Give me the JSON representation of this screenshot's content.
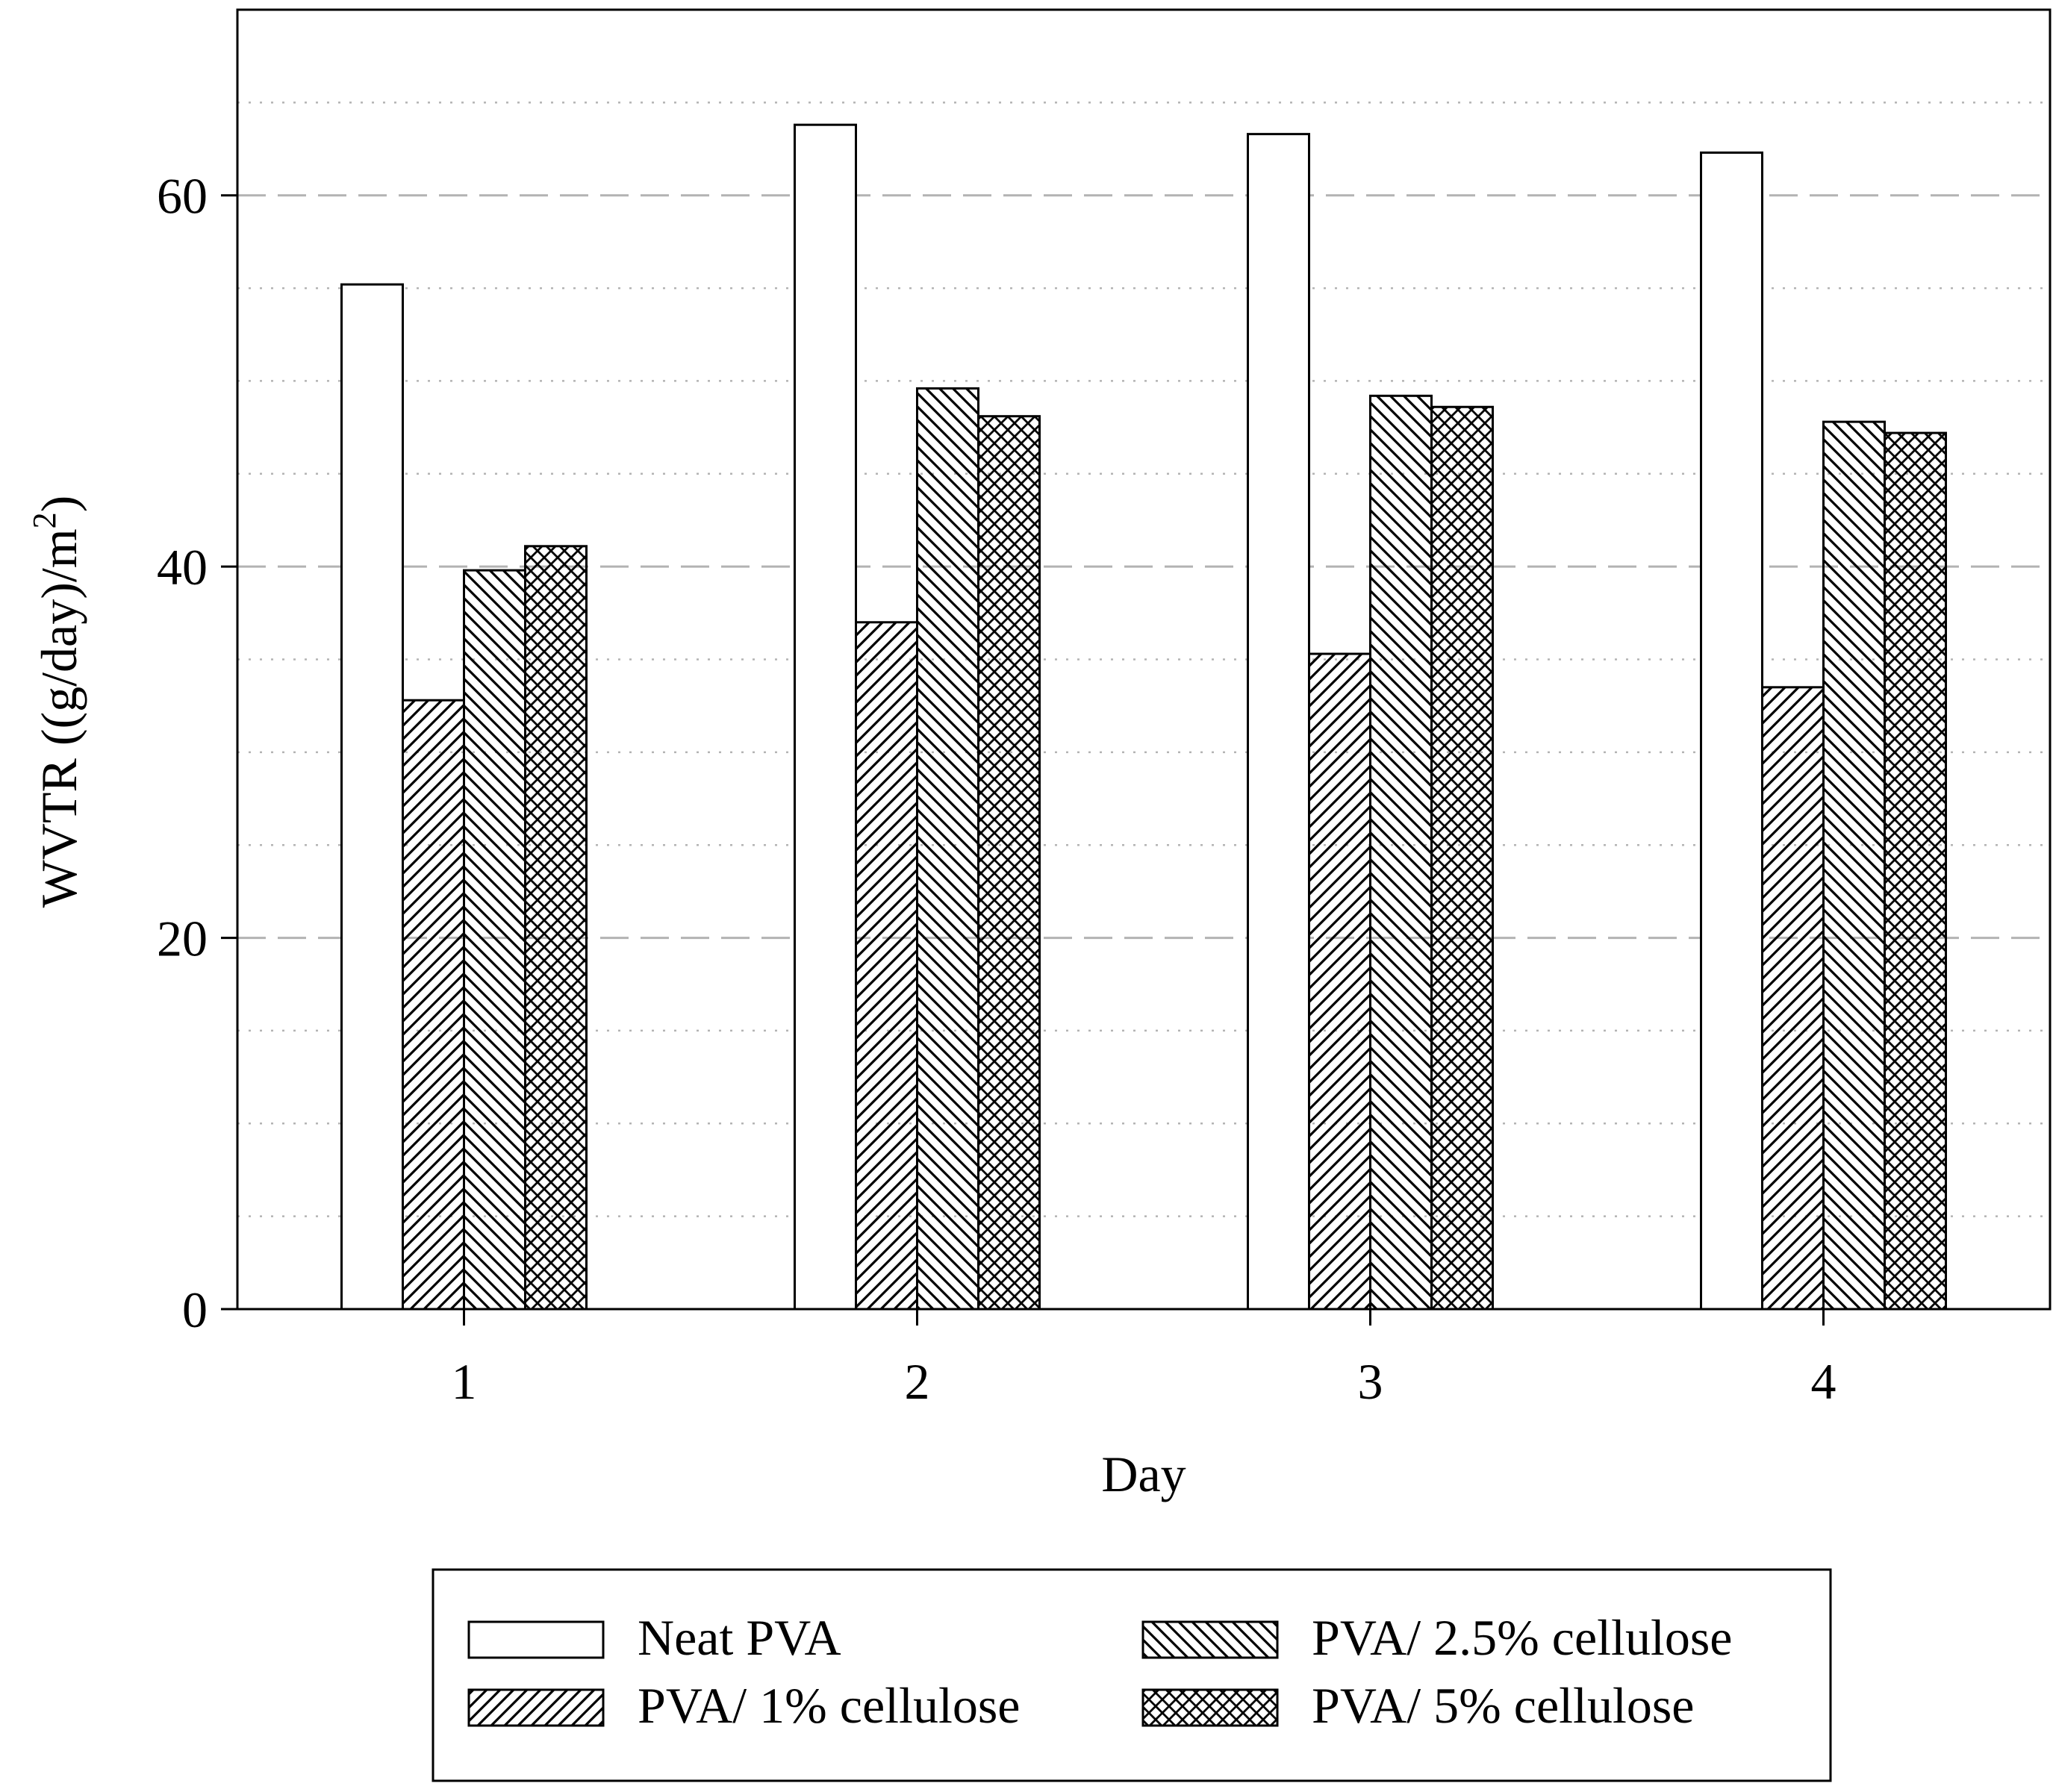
{
  "chart_data": {
    "type": "bar",
    "title": "",
    "xlabel": "Day",
    "ylabel_main": "WVTR ((g/day)/m",
    "ylabel_sup": "2",
    "ylabel_close": ")",
    "categories": [
      "1",
      "2",
      "3",
      "4"
    ],
    "ylim": [
      0,
      70
    ],
    "yticks": [
      0,
      20,
      40,
      60
    ],
    "grid": {
      "major": "dashed",
      "minor": "dotted",
      "minor_step": 4
    },
    "legend_position": "bottom",
    "series": [
      {
        "name": "Neat PVA",
        "pattern": "none",
        "values": [
          55.2,
          63.8,
          63.3,
          62.3
        ]
      },
      {
        "name": "PVA/ 1% cellulose",
        "pattern": "forward-diagonal",
        "values": [
          32.8,
          37.0,
          35.3,
          33.5
        ]
      },
      {
        "name": "PVA/ 2.5% cellulose",
        "pattern": "back-diagonal",
        "values": [
          39.8,
          49.6,
          49.2,
          47.8
        ]
      },
      {
        "name": "PVA/ 5% cellulose",
        "pattern": "crosshatch",
        "values": [
          41.1,
          48.1,
          48.6,
          47.2
        ]
      }
    ],
    "colors": {
      "bar_fill": "#ffffff",
      "stroke": "#000000",
      "grid": "#b3b3b3"
    }
  }
}
